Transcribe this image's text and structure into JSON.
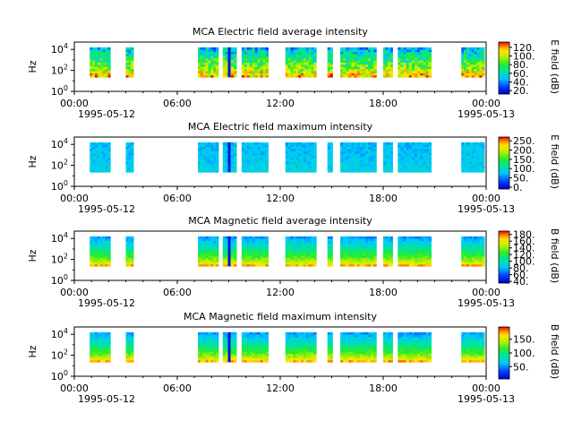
{
  "chart_data": [
    {
      "type": "heatmap",
      "title": "MCA  Electric field average intensity",
      "ylabel": "Hz",
      "colorbar_label": "E field (dB)",
      "colorbar_ticks": [
        "120.",
        "100.",
        "80.",
        "60.",
        "40.",
        "20."
      ],
      "colorbar_range": [
        12,
        132
      ],
      "hot_band": "bottom",
      "y_ticks": [
        "10^4",
        "10^2",
        "10^0"
      ],
      "x_ticks": [
        "00:00",
        "06:00",
        "12:00",
        "18:00",
        "00:00"
      ],
      "x_dates": [
        "1995-05-12",
        "1995-05-13"
      ]
    },
    {
      "type": "heatmap",
      "title": "MCA  Electric field maximum intensity",
      "ylabel": "Hz",
      "colorbar_label": "E field (dB)",
      "colorbar_ticks": [
        "250.",
        "200.",
        "150.",
        "100.",
        "50.",
        "0."
      ],
      "colorbar_range": [
        -10,
        270
      ],
      "hot_band": "none",
      "y_ticks": [
        "10^4",
        "10^2",
        "10^0"
      ],
      "x_ticks": [
        "00:00",
        "06:00",
        "12:00",
        "18:00",
        "00:00"
      ],
      "x_dates": [
        "1995-05-12",
        "1995-05-13"
      ]
    },
    {
      "type": "heatmap",
      "title": "MCA  Magnetic field average intensity",
      "ylabel": "Hz",
      "colorbar_label": "B field (dB)",
      "colorbar_ticks": [
        "180.",
        "160.",
        "140.",
        "120.",
        "100.",
        "80.",
        "60.",
        "40."
      ],
      "colorbar_range": [
        35,
        190
      ],
      "hot_band": "bottom",
      "y_ticks": [
        "10^4",
        "10^2",
        "10^0"
      ],
      "x_ticks": [
        "00:00",
        "06:00",
        "12:00",
        "18:00",
        "00:00"
      ],
      "x_dates": [
        "1995-05-12",
        "1995-05-13"
      ]
    },
    {
      "type": "heatmap",
      "title": "MCA  Magnetic field maximum intensity",
      "ylabel": "Hz",
      "colorbar_label": "B field (dB)",
      "colorbar_ticks": [
        "150.",
        "100.",
        "50."
      ],
      "colorbar_range": [
        5,
        195
      ],
      "hot_band": "bottom",
      "y_ticks": [
        "10^4",
        "10^2",
        "10^0"
      ],
      "x_ticks": [
        "00:00",
        "06:00",
        "12:00",
        "18:00",
        "00:00"
      ],
      "x_dates": [
        "1995-05-12",
        "1995-05-13"
      ]
    }
  ],
  "data_segments_hours": [
    [
      0.9,
      2.1
    ],
    [
      3.0,
      3.45
    ],
    [
      7.2,
      8.4
    ],
    [
      8.65,
      9.45
    ],
    [
      9.75,
      11.3
    ],
    [
      12.3,
      14.1
    ],
    [
      14.75,
      15.05
    ],
    [
      15.5,
      17.6
    ],
    [
      18.0,
      18.55
    ],
    [
      18.85,
      20.8
    ],
    [
      22.55,
      23.9
    ]
  ]
}
